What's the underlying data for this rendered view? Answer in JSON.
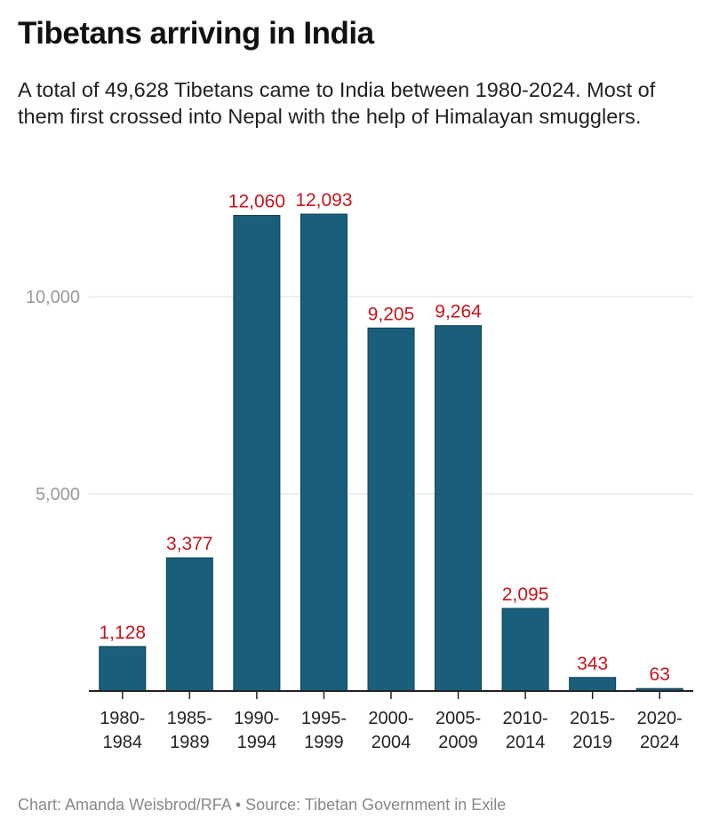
{
  "title": "Tibetans arriving in India",
  "subtitle": "A total of 49,628 Tibetans came to India between 1980-2024. Most of them first crossed into Nepal with the help of Himalayan smugglers.",
  "footer": "Chart: Amanda Weisbrod/RFA • Source: Tibetan Government in Exile",
  "chart_data": {
    "type": "bar",
    "categories": [
      [
        "1980-",
        "1984"
      ],
      [
        "1985-",
        "1989"
      ],
      [
        "1990-",
        "1994"
      ],
      [
        "1995-",
        "1999"
      ],
      [
        "2000-",
        "2004"
      ],
      [
        "2005-",
        "2009"
      ],
      [
        "2010-",
        "2014"
      ],
      [
        "2015-",
        "2019"
      ],
      [
        "2020-",
        "2024"
      ]
    ],
    "values": [
      1128,
      3377,
      12060,
      12093,
      9205,
      9264,
      2095,
      343,
      63
    ],
    "value_labels": [
      "1,128",
      "3,377",
      "12,060",
      "12,093",
      "9,205",
      "9,264",
      "2,095",
      "343",
      "63"
    ],
    "yticks": [
      5000,
      10000
    ],
    "ytick_labels": [
      "5,000",
      "10,000"
    ],
    "ylim": [
      0,
      12500
    ],
    "grid": true,
    "colors": {
      "bar": "#195f7b",
      "bar_border": "#0f3d50",
      "label": "#c4161c",
      "grid": "#dddddd",
      "tick_text": "#999999"
    }
  }
}
